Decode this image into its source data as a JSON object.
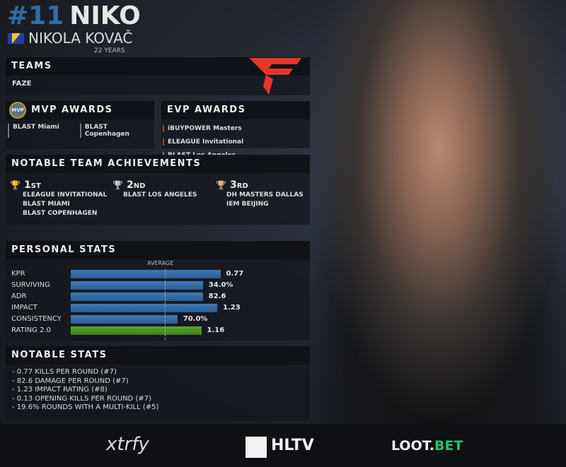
{
  "player": {
    "number": "#11",
    "nickname": "NIKO",
    "real_name": "NIKOLA KOVAČ",
    "age": "22 YEARS",
    "flag": "bosnia-flag"
  },
  "teams": {
    "title": "TEAMS",
    "team": "FAZE",
    "logo": "faze-logo",
    "logo_color": "#e2372b"
  },
  "mvp": {
    "title": "MVP AWARDS",
    "badge": "MVP",
    "items": [
      "BLAST Miami",
      "BLAST Copenhagen"
    ]
  },
  "evp": {
    "title": "EVP AWARDS",
    "items": [
      "iBUYPOWER Masters",
      "ELEAGUE Invitational",
      "BLAST Los Angeles"
    ]
  },
  "achievements": {
    "title": "NOTABLE TEAM ACHIEVEMENTS",
    "places": [
      {
        "num": "1",
        "suffix": "ST",
        "events": [
          "ELEAGUE INVITATIONAL",
          "BLAST MIAMI",
          "BLAST COPENHAGEN"
        ]
      },
      {
        "num": "2",
        "suffix": "ND",
        "events": [
          "BLAST LOS ANGELES"
        ]
      },
      {
        "num": "3",
        "suffix": "RD",
        "events": [
          "DH MASTERS DALLAS",
          "IEM BEIJING"
        ]
      }
    ]
  },
  "personal_stats": {
    "title": "PERSONAL STATS",
    "average_label": "AVERAGE",
    "average_fraction": 0.59,
    "rows": [
      {
        "label": "KPR",
        "value": "0.77",
        "fill": 0.94
      },
      {
        "label": "SURVIVING",
        "value": "34.0%",
        "fill": 0.83
      },
      {
        "label": "ADR",
        "value": "82.6",
        "fill": 0.83
      },
      {
        "label": "IMPACT",
        "value": "1.23",
        "fill": 0.92
      },
      {
        "label": "CONSISTENCY",
        "value": "70.0%",
        "fill": 0.67
      },
      {
        "label": "RATING 2.0",
        "value": "1.16",
        "fill": 0.82
      }
    ],
    "bar_color": "#3572ab",
    "rating_color": "#4f9622"
  },
  "notable_stats": {
    "title": "NOTABLE STATS",
    "items": [
      "- 0.77 KILLS PER ROUND (#7)",
      "- 82.6 DAMAGE PER ROUND (#7)",
      "- 1.23 IMPACT RATING (#8)",
      "- 0.13 OPENING KILLS PER ROUND (#7)",
      "- 19.6% ROUNDS WITH A MULTI-KILL (#5)"
    ]
  },
  "sponsors": [
    "xtrfy",
    "HLTV",
    "LOOT",
    "BET"
  ]
}
